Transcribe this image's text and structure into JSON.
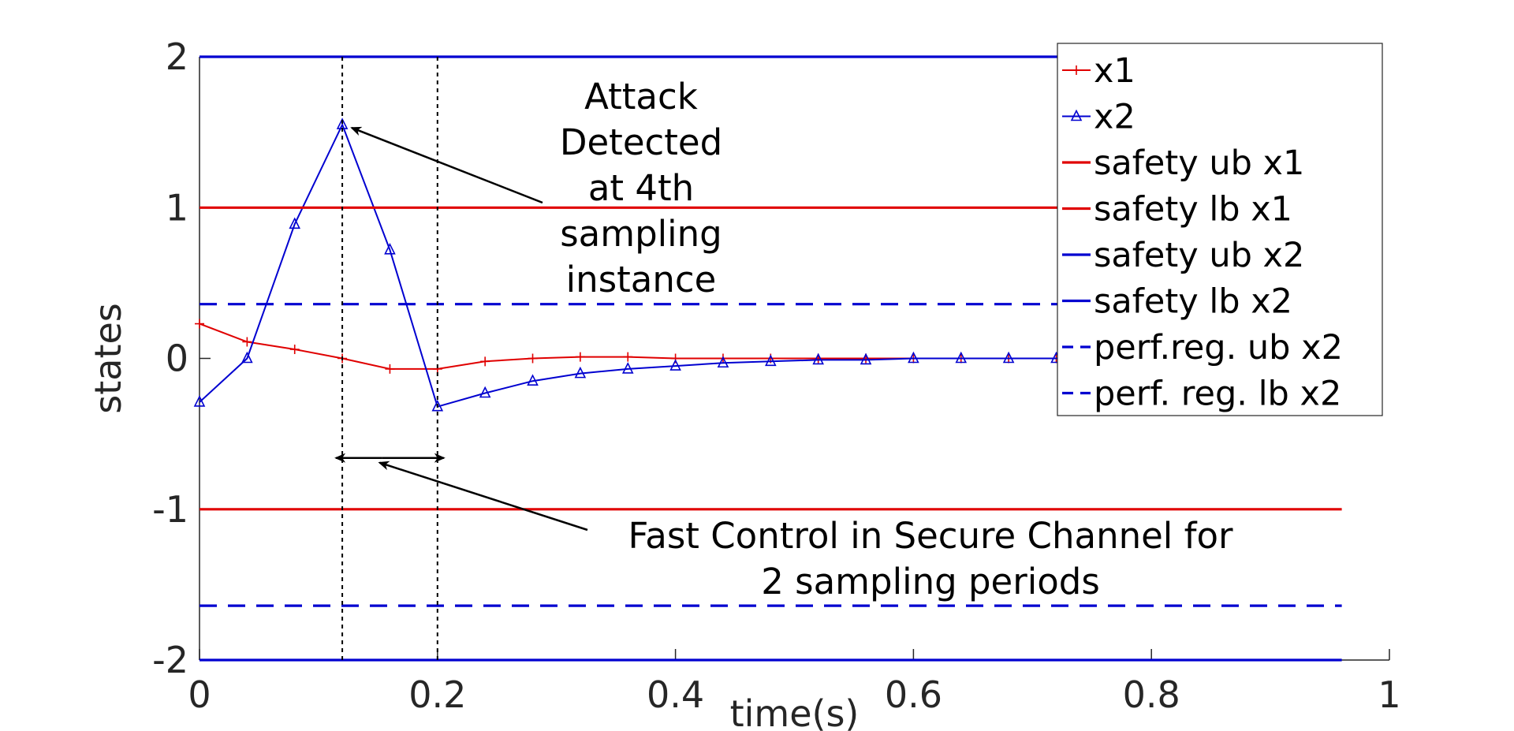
{
  "chart_data": {
    "type": "line",
    "xlabel": "time(s)",
    "ylabel": "states",
    "xlim": [
      0,
      1
    ],
    "ylim": [
      -2,
      2
    ],
    "xticks": [
      0,
      0.2,
      0.4,
      0.6,
      0.8,
      1
    ],
    "xtick_labels": [
      "0",
      "0.2",
      "0.4",
      "0.6",
      "0.8",
      "1"
    ],
    "yticks": [
      -2,
      -1,
      0,
      1,
      2
    ],
    "ytick_labels": [
      "-2",
      "-1",
      "0",
      "1",
      "2"
    ],
    "grid": false,
    "legend_position": "top-right",
    "series": [
      {
        "name": "x1",
        "color": "#e00000",
        "style": "solid",
        "marker": "plus",
        "x": [
          0,
          0.04,
          0.08,
          0.12,
          0.16,
          0.2,
          0.24,
          0.28,
          0.32,
          0.36,
          0.4,
          0.44,
          0.48,
          0.52,
          0.56,
          0.6,
          0.64,
          0.68,
          0.72,
          0.76,
          0.8,
          0.84,
          0.88,
          0.92,
          0.96
        ],
        "y": [
          0.23,
          0.11,
          0.06,
          0.0,
          -0.07,
          -0.07,
          -0.02,
          0.0,
          0.01,
          0.01,
          0.0,
          0.0,
          0.0,
          0.0,
          0.0,
          0.0,
          0.0,
          0.0,
          0.0,
          0.0,
          0.0,
          0.0,
          0.0,
          0.0,
          0.0
        ]
      },
      {
        "name": "x2",
        "color": "#0000d0",
        "style": "solid",
        "marker": "triangle",
        "x": [
          0,
          0.04,
          0.08,
          0.12,
          0.16,
          0.2,
          0.24,
          0.28,
          0.32,
          0.36,
          0.4,
          0.44,
          0.48,
          0.52,
          0.56,
          0.6,
          0.64,
          0.68,
          0.72,
          0.76,
          0.8,
          0.84,
          0.88,
          0.92,
          0.96
        ],
        "y": [
          -0.29,
          0.0,
          0.89,
          1.55,
          0.72,
          -0.32,
          -0.23,
          -0.15,
          -0.1,
          -0.07,
          -0.05,
          -0.03,
          -0.02,
          -0.01,
          -0.01,
          0.0,
          0.0,
          0.0,
          0.0,
          0.0,
          0.0,
          0.0,
          0.0,
          0.0,
          0.0
        ]
      },
      {
        "name": "safety ub x1",
        "color": "#e00000",
        "style": "solid",
        "x": [
          0,
          0.96
        ],
        "y": [
          1,
          1
        ]
      },
      {
        "name": "safety lb x1",
        "color": "#e00000",
        "style": "solid",
        "x": [
          0,
          0.96
        ],
        "y": [
          -1,
          -1
        ]
      },
      {
        "name": "safety ub x2",
        "color": "#0000d0",
        "style": "solid",
        "x": [
          0,
          0.96
        ],
        "y": [
          2,
          2
        ]
      },
      {
        "name": "safety lb x2",
        "color": "#0000d0",
        "style": "solid",
        "x": [
          0,
          0.96
        ],
        "y": [
          -2,
          -2
        ]
      },
      {
        "name": "perf.reg. ub x2",
        "color": "#0000d0",
        "style": "dashed",
        "x": [
          0,
          0.96
        ],
        "y": [
          0.36,
          0.36
        ]
      },
      {
        "name": "perf. reg. lb x2",
        "color": "#0000d0",
        "style": "dashed",
        "x": [
          0,
          0.96
        ],
        "y": [
          -1.64,
          -1.64
        ]
      }
    ],
    "vertical_markers": [
      {
        "x": 0.12,
        "style": "dotted",
        "color": "#000000"
      },
      {
        "x": 0.2,
        "style": "dotted",
        "color": "#000000"
      }
    ],
    "annotations": [
      {
        "lines": [
          "Attack",
          "Detected",
          "at 4th",
          "sampling",
          "instance"
        ],
        "arrow_to": [
          0.12,
          1.55
        ]
      },
      {
        "lines": [
          "Fast Control in Secure Channel for",
          "2 sampling periods"
        ],
        "span": [
          0.12,
          0.2
        ],
        "span_y": -0.66,
        "arrow_to": [
          0.15,
          -0.66
        ]
      }
    ]
  }
}
